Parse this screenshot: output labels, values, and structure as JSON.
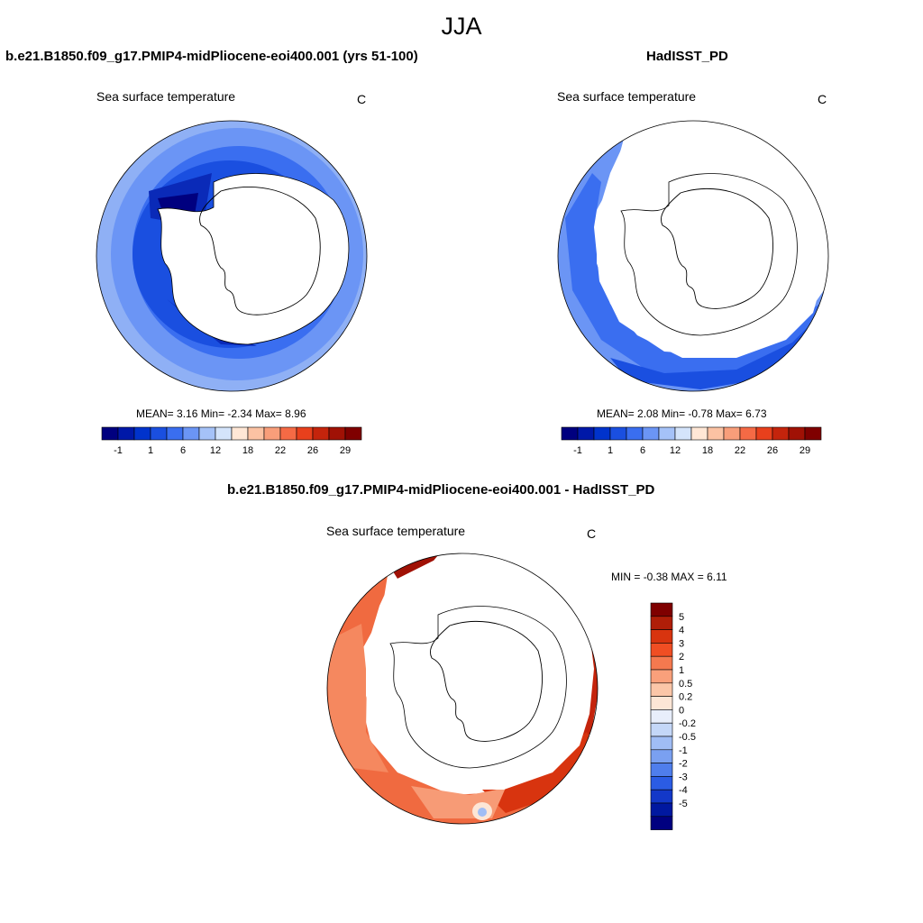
{
  "figure": {
    "title": "JJA"
  },
  "panels": [
    {
      "title": "b.e21.B1850.f09_g17.PMIP4-midPliocene-eoi400.001 (yrs 51-100)",
      "variable": "Sea surface temperature",
      "units": "C",
      "stats": {
        "mean_label": "MEAN=",
        "mean": "3.16",
        "min_label": "Min=",
        "min": "-2.34",
        "max_label": "Max=",
        "max": "8.96"
      },
      "colorbar": {
        "orientation": "horizontal",
        "colors": [
          "#00007f",
          "#0018a8",
          "#0033cc",
          "#1a4fe0",
          "#3a6ef0",
          "#6b95f5",
          "#a5c2f8",
          "#d4e4fb",
          "#ffe7d6",
          "#fbc2a3",
          "#f89e7a",
          "#f56a45",
          "#e8401c",
          "#c4240c",
          "#a01105",
          "#7f0000"
        ],
        "tick_labels": [
          "-1",
          "1",
          "6",
          "12",
          "18",
          "22",
          "26",
          "29"
        ]
      }
    },
    {
      "title": "HadISST_PD",
      "variable": "Sea surface temperature",
      "units": "C",
      "stats": {
        "mean_label": "MEAN=",
        "mean": "2.08",
        "min_label": "Min=",
        "min": "-0.78",
        "max_label": "Max=",
        "max": "6.73"
      },
      "colorbar": {
        "orientation": "horizontal",
        "colors": [
          "#00007f",
          "#0018a8",
          "#0033cc",
          "#1a4fe0",
          "#3a6ef0",
          "#6b95f5",
          "#a5c2f8",
          "#d4e4fb",
          "#ffe7d6",
          "#fbc2a3",
          "#f89e7a",
          "#f56a45",
          "#e8401c",
          "#c4240c",
          "#a01105",
          "#7f0000"
        ],
        "tick_labels": [
          "-1",
          "1",
          "6",
          "12",
          "18",
          "22",
          "26",
          "29"
        ]
      }
    },
    {
      "title": "b.e21.B1850.f09_g17.PMIP4-midPliocene-eoi400.001 - HadISST_PD",
      "variable": "Sea surface temperature",
      "units": "C",
      "stats": {
        "min_label": "MIN =",
        "min": "-0.38",
        "max_label": "MAX =",
        "max": "6.11"
      },
      "colorbar": {
        "orientation": "vertical",
        "colors": [
          "#7f0000",
          "#b01e08",
          "#d8340f",
          "#f04e23",
          "#f5794f",
          "#f9a07b",
          "#fbc6a8",
          "#fde6d6",
          "#e8eefb",
          "#c4d7f8",
          "#a0bdf5",
          "#7aa0f1",
          "#4f7eec",
          "#2b5ce4",
          "#1338c8",
          "#0018a0",
          "#000080"
        ],
        "tick_labels": [
          "5",
          "4",
          "3",
          "2",
          "1",
          "0.5",
          "0.2",
          "0",
          "-0.2",
          "-0.5",
          "-1",
          "-2",
          "-3",
          "-4",
          "-5"
        ]
      }
    }
  ]
}
